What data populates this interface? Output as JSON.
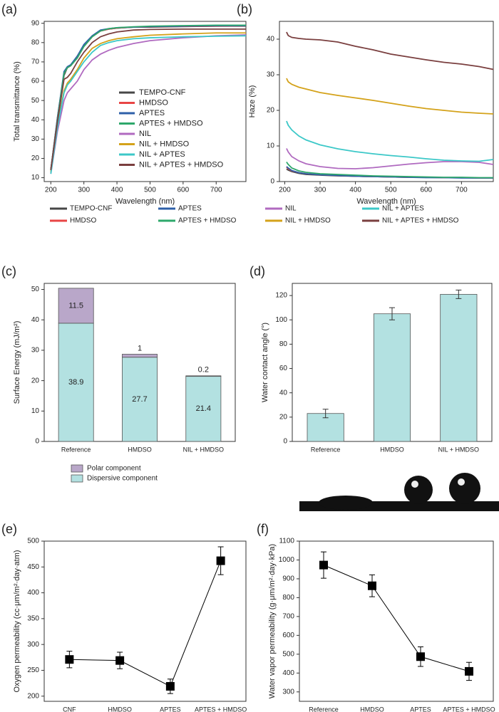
{
  "chart_data": [
    {
      "type": "line",
      "label": "(a)",
      "xlabel": "Wavelength (nm)",
      "ylabel": "Total transmittance (%)",
      "x": [
        200,
        220,
        240,
        250,
        260,
        280,
        300,
        325,
        350,
        375,
        400,
        450,
        500,
        600,
        700,
        790
      ],
      "xlim": [
        180,
        790
      ],
      "xticks": [
        200,
        300,
        400,
        500,
        600,
        700
      ],
      "ylim": [
        8,
        91
      ],
      "yticks": [
        10,
        20,
        30,
        40,
        50,
        60,
        70,
        80,
        90
      ],
      "legend": "lower-right",
      "series": [
        {
          "name": "TEMPO-CNF",
          "color": "#474747",
          "values": [
            14,
            40,
            63,
            67,
            68,
            72,
            78,
            83,
            86,
            87,
            87.5,
            88,
            88,
            88.3,
            88.5,
            88.5
          ]
        },
        {
          "name": "HMDSO",
          "color": "#e84545",
          "values": [
            14,
            41,
            64,
            67,
            68,
            73,
            78,
            83,
            86,
            87,
            87.5,
            88,
            88.2,
            88.4,
            88.5,
            88.6
          ]
        },
        {
          "name": "APTES",
          "color": "#2e5fa8",
          "values": [
            14,
            41,
            65,
            67.5,
            68.5,
            73,
            79,
            83.5,
            86.5,
            87.2,
            87.7,
            88,
            88.3,
            88.5,
            88.7,
            88.7
          ]
        },
        {
          "name": "APTES + HMDSO",
          "color": "#2ea86b",
          "values": [
            14,
            40,
            64,
            67,
            68,
            72,
            78,
            83,
            86,
            87.2,
            87.7,
            88.2,
            88.5,
            88.8,
            89,
            89
          ]
        },
        {
          "name": "NIL",
          "color": "#b06ac0",
          "values": [
            12,
            34,
            50,
            54,
            56,
            60,
            66,
            71,
            74,
            76,
            77.5,
            79.5,
            81,
            82.5,
            83.5,
            84
          ]
        },
        {
          "name": "NIL + HMDSO",
          "color": "#d4a21a",
          "values": [
            13,
            37,
            55,
            59,
            61,
            66,
            72,
            77,
            79.5,
            81,
            82,
            83,
            83.8,
            84.5,
            85,
            85
          ]
        },
        {
          "name": "NIL + APTES",
          "color": "#3cc8c8",
          "values": [
            12,
            36,
            54,
            58,
            60,
            65,
            70,
            75,
            78.5,
            80,
            81,
            82,
            82.5,
            83,
            83.3,
            83.5
          ]
        },
        {
          "name": "NIL + APTES + HMDSO",
          "color": "#7a3f3f",
          "values": [
            14,
            39,
            61,
            62,
            64,
            70,
            75,
            80,
            83,
            84.5,
            85.5,
            86.5,
            86.8,
            87,
            87,
            87
          ]
        }
      ]
    },
    {
      "type": "line",
      "label": "(b)",
      "xlabel": "Wavelength (nm)",
      "ylabel": "Haze (%)",
      "x": [
        205,
        210,
        220,
        240,
        260,
        300,
        350,
        400,
        450,
        500,
        550,
        600,
        650,
        700,
        750,
        790
      ],
      "xlim": [
        185,
        790
      ],
      "xticks": [
        200,
        300,
        400,
        500,
        600,
        700
      ],
      "ylim": [
        0,
        45
      ],
      "yticks": [
        0,
        10,
        20,
        30,
        40
      ],
      "legend": "below",
      "series": [
        {
          "name": "TEMPO-CNF",
          "color": "#474747",
          "values": [
            3.5,
            3.2,
            2.8,
            2.3,
            2,
            1.8,
            1.6,
            1.5,
            1.4,
            1.3,
            1.2,
            1.2,
            1.1,
            1.1,
            1.0,
            1.0
          ]
        },
        {
          "name": "HMDSO",
          "color": "#e84545",
          "values": [
            4,
            3.6,
            3,
            2.5,
            2.2,
            1.9,
            1.7,
            1.5,
            1.4,
            1.3,
            1.2,
            1.2,
            1.1,
            1.1,
            1.0,
            1.0
          ]
        },
        {
          "name": "APTES",
          "color": "#2e5fa8",
          "values": [
            4.2,
            3.8,
            3.1,
            2.5,
            2.2,
            1.9,
            1.7,
            1.5,
            1.4,
            1.3,
            1.2,
            1.1,
            1.1,
            1.0,
            1.0,
            1.0
          ]
        },
        {
          "name": "APTES + HMDSO",
          "color": "#2ea86b",
          "values": [
            5.5,
            4.8,
            3.8,
            3,
            2.6,
            2.2,
            2,
            1.8,
            1.6,
            1.5,
            1.4,
            1.3,
            1.2,
            1.2,
            1.1,
            1.1
          ]
        },
        {
          "name": "NIL",
          "color": "#b06ac0",
          "values": [
            9.3,
            8.3,
            7,
            5.8,
            5,
            4.2,
            3.7,
            3.6,
            3.9,
            4.4,
            4.9,
            5.3,
            5.6,
            5.6,
            5.4,
            4.8
          ]
        },
        {
          "name": "NIL + HMDSO",
          "color": "#d4a21a",
          "values": [
            29,
            28,
            27.3,
            26.5,
            26,
            25,
            24.2,
            23.5,
            22.8,
            22,
            21.2,
            20.5,
            20,
            19.5,
            19.2,
            19
          ]
        },
        {
          "name": "NIL + APTES",
          "color": "#3cc8c8",
          "values": [
            17,
            15.8,
            14.5,
            12.8,
            11.7,
            10.3,
            9.2,
            8.4,
            7.8,
            7.3,
            6.9,
            6.4,
            6,
            5.8,
            5.7,
            6.2
          ]
        },
        {
          "name": "NIL + APTES + HMDSO",
          "color": "#7a3f3f",
          "values": [
            42,
            41,
            40.5,
            40.2,
            40,
            39.8,
            39.2,
            38,
            37,
            35.8,
            35,
            34.2,
            33.5,
            33,
            32.3,
            31.5
          ]
        }
      ]
    },
    {
      "type": "bar",
      "label": "(c)",
      "ylabel": "Surface Energy (mJ/m²)",
      "stacked": true,
      "legend": "below",
      "categories": [
        "Reference",
        "HMDSO",
        "NIL + HMDSO"
      ],
      "ylim": [
        0,
        52
      ],
      "yticks": [
        0,
        10,
        20,
        30,
        40,
        50
      ],
      "series": [
        {
          "name": "Dispersive component",
          "color": "#b3e1e1",
          "values": [
            38.9,
            27.7,
            21.4
          ]
        },
        {
          "name": "Polar component",
          "color": "#b9a7c9",
          "values": [
            11.5,
            1,
            0.2
          ]
        }
      ]
    },
    {
      "type": "bar",
      "label": "(d)",
      "ylabel": "Water contact angle (°)",
      "color": "#b3e1e1",
      "categories": [
        "Reference",
        "HMDSO",
        "NIL + HMDSO"
      ],
      "values": [
        23,
        105,
        121
      ],
      "errors": [
        3.5,
        5,
        3.5
      ],
      "ylim": [
        0,
        130
      ],
      "yticks": [
        0,
        20,
        40,
        60,
        80,
        100,
        120
      ]
    },
    {
      "type": "line",
      "label": "(e)",
      "ylabel": "Oxygen permeability (cc·μm/m²·day·atm)",
      "color": "#000000",
      "categories": [
        "CNF",
        "HMDSO",
        "APTES",
        "APTES + HMDSO"
      ],
      "values": [
        271,
        269,
        219,
        462
      ],
      "errors": [
        16,
        16,
        14,
        27
      ],
      "ylim": [
        190,
        500
      ],
      "yticks": [
        200,
        250,
        300,
        350,
        400,
        450,
        500
      ]
    },
    {
      "type": "line",
      "label": "(f)",
      "ylabel": "Water vapor permeability (g·μm/m²·day·kPa)",
      "color": "#000000",
      "categories": [
        "Reference",
        "HMDSO",
        "APTES",
        "APTES + HMDSO"
      ],
      "values": [
        973,
        863,
        487,
        409
      ],
      "errors": [
        70,
        58,
        52,
        48
      ],
      "ylim": [
        250,
        1100
      ],
      "yticks": [
        300,
        400,
        500,
        600,
        700,
        800,
        900,
        1000,
        1100
      ]
    }
  ]
}
